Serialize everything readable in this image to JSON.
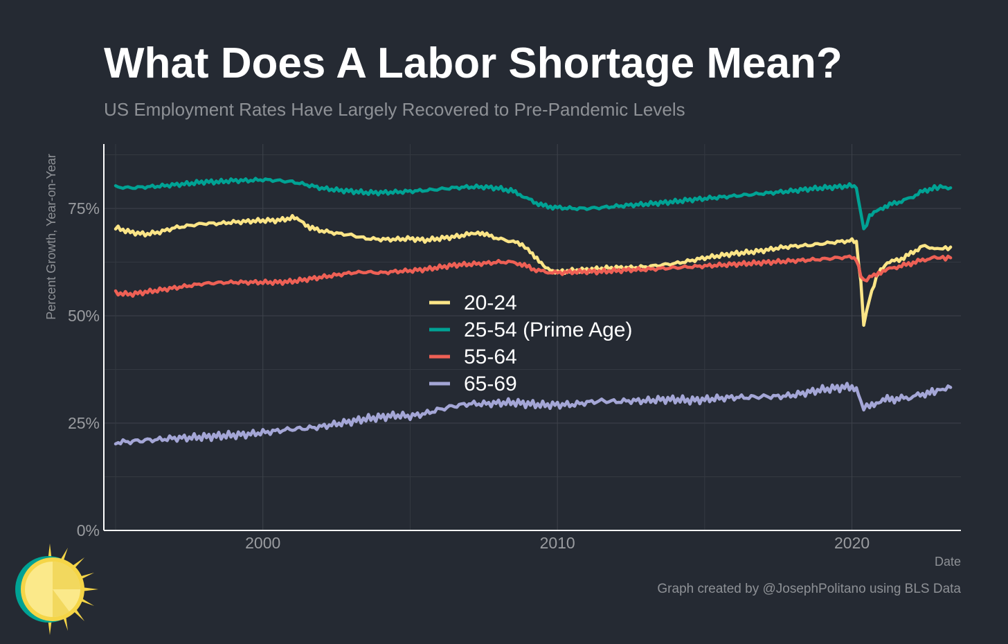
{
  "title": "What Does A Labor Shortage Mean?",
  "subtitle": "US Employment Rates Have Largely Recovered to Pre-Pandemic Levels",
  "credit": "Graph created by @JosephPolitano using BLS Data",
  "logo_icon": "sun-logo-icon",
  "chart_data": {
    "type": "line",
    "xlabel": "Date",
    "ylabel": "Percent Growth, Year-on-Year",
    "xlim": [
      1994.6,
      2023.7
    ],
    "ylim": [
      0,
      0.9
    ],
    "x_ticks": [
      2000,
      2010,
      2020
    ],
    "x_tick_labels": [
      "2000",
      "2010",
      "2020"
    ],
    "y_ticks": [
      0,
      0.25,
      0.5,
      0.75
    ],
    "y_tick_labels": [
      "0%",
      "25%",
      "50%",
      "75%"
    ],
    "grid": true,
    "legend_position": "center",
    "series": [
      {
        "name": "20-24",
        "color": "#fce587",
        "points": [
          [
            1995.0,
            0.705
          ],
          [
            1995.5,
            0.695
          ],
          [
            1996.0,
            0.69
          ],
          [
            1996.5,
            0.695
          ],
          [
            1997.0,
            0.705
          ],
          [
            1997.5,
            0.71
          ],
          [
            1998.0,
            0.715
          ],
          [
            1998.5,
            0.715
          ],
          [
            1999.0,
            0.718
          ],
          [
            1999.5,
            0.72
          ],
          [
            2000.0,
            0.722
          ],
          [
            2000.5,
            0.722
          ],
          [
            2001.0,
            0.728
          ],
          [
            2001.3,
            0.722
          ],
          [
            2001.6,
            0.705
          ],
          [
            2002.0,
            0.698
          ],
          [
            2002.5,
            0.692
          ],
          [
            2003.0,
            0.688
          ],
          [
            2003.5,
            0.68
          ],
          [
            2004.0,
            0.678
          ],
          [
            2004.5,
            0.678
          ],
          [
            2005.0,
            0.68
          ],
          [
            2005.5,
            0.676
          ],
          [
            2006.0,
            0.68
          ],
          [
            2006.5,
            0.684
          ],
          [
            2007.0,
            0.69
          ],
          [
            2007.3,
            0.695
          ],
          [
            2007.6,
            0.688
          ],
          [
            2008.0,
            0.68
          ],
          [
            2008.5,
            0.672
          ],
          [
            2008.8,
            0.665
          ],
          [
            2009.0,
            0.655
          ],
          [
            2009.3,
            0.635
          ],
          [
            2009.6,
            0.61
          ],
          [
            2010.0,
            0.602
          ],
          [
            2010.5,
            0.605
          ],
          [
            2011.0,
            0.607
          ],
          [
            2011.5,
            0.61
          ],
          [
            2012.0,
            0.612
          ],
          [
            2012.5,
            0.612
          ],
          [
            2013.0,
            0.614
          ],
          [
            2013.5,
            0.618
          ],
          [
            2014.0,
            0.622
          ],
          [
            2014.5,
            0.628
          ],
          [
            2015.0,
            0.635
          ],
          [
            2015.5,
            0.64
          ],
          [
            2016.0,
            0.645
          ],
          [
            2016.5,
            0.648
          ],
          [
            2017.0,
            0.652
          ],
          [
            2017.5,
            0.658
          ],
          [
            2018.0,
            0.662
          ],
          [
            2018.5,
            0.664
          ],
          [
            2019.0,
            0.668
          ],
          [
            2019.5,
            0.672
          ],
          [
            2020.0,
            0.675
          ],
          [
            2020.15,
            0.67
          ],
          [
            2020.3,
            0.58
          ],
          [
            2020.4,
            0.48
          ],
          [
            2020.6,
            0.54
          ],
          [
            2020.9,
            0.6
          ],
          [
            2021.2,
            0.625
          ],
          [
            2021.6,
            0.63
          ],
          [
            2022.0,
            0.645
          ],
          [
            2022.4,
            0.662
          ],
          [
            2022.8,
            0.658
          ],
          [
            2023.0,
            0.655
          ],
          [
            2023.35,
            0.66
          ]
        ]
      },
      {
        "name": "25-54 (Prime Age)",
        "color": "#00a294",
        "points": [
          [
            1995.0,
            0.8
          ],
          [
            1995.5,
            0.798
          ],
          [
            1996.0,
            0.8
          ],
          [
            1996.5,
            0.802
          ],
          [
            1997.0,
            0.805
          ],
          [
            1997.5,
            0.808
          ],
          [
            1998.0,
            0.812
          ],
          [
            1998.5,
            0.812
          ],
          [
            1999.0,
            0.815
          ],
          [
            1999.5,
            0.815
          ],
          [
            2000.0,
            0.817
          ],
          [
            2000.5,
            0.815
          ],
          [
            2001.0,
            0.812
          ],
          [
            2001.5,
            0.805
          ],
          [
            2002.0,
            0.797
          ],
          [
            2002.5,
            0.793
          ],
          [
            2003.0,
            0.79
          ],
          [
            2003.5,
            0.787
          ],
          [
            2004.0,
            0.787
          ],
          [
            2004.5,
            0.788
          ],
          [
            2005.0,
            0.79
          ],
          [
            2005.5,
            0.792
          ],
          [
            2006.0,
            0.795
          ],
          [
            2006.5,
            0.798
          ],
          [
            2007.0,
            0.8
          ],
          [
            2007.5,
            0.8
          ],
          [
            2008.0,
            0.797
          ],
          [
            2008.5,
            0.79
          ],
          [
            2008.8,
            0.78
          ],
          [
            2009.2,
            0.765
          ],
          [
            2009.6,
            0.755
          ],
          [
            2010.0,
            0.752
          ],
          [
            2010.5,
            0.75
          ],
          [
            2011.0,
            0.75
          ],
          [
            2011.5,
            0.752
          ],
          [
            2012.0,
            0.755
          ],
          [
            2012.5,
            0.758
          ],
          [
            2013.0,
            0.76
          ],
          [
            2013.5,
            0.763
          ],
          [
            2014.0,
            0.766
          ],
          [
            2014.5,
            0.77
          ],
          [
            2015.0,
            0.773
          ],
          [
            2015.5,
            0.776
          ],
          [
            2016.0,
            0.779
          ],
          [
            2016.5,
            0.782
          ],
          [
            2017.0,
            0.785
          ],
          [
            2017.5,
            0.788
          ],
          [
            2018.0,
            0.791
          ],
          [
            2018.5,
            0.795
          ],
          [
            2019.0,
            0.798
          ],
          [
            2019.5,
            0.8
          ],
          [
            2020.0,
            0.803
          ],
          [
            2020.15,
            0.8
          ],
          [
            2020.3,
            0.74
          ],
          [
            2020.4,
            0.7
          ],
          [
            2020.6,
            0.73
          ],
          [
            2020.9,
            0.748
          ],
          [
            2021.2,
            0.757
          ],
          [
            2021.6,
            0.765
          ],
          [
            2022.0,
            0.775
          ],
          [
            2022.4,
            0.79
          ],
          [
            2022.8,
            0.798
          ],
          [
            2023.0,
            0.8
          ],
          [
            2023.35,
            0.798
          ]
        ]
      },
      {
        "name": "55-64",
        "color": "#ee6055",
        "points": [
          [
            1995.0,
            0.553
          ],
          [
            1995.5,
            0.55
          ],
          [
            1996.0,
            0.555
          ],
          [
            1996.5,
            0.56
          ],
          [
            1997.0,
            0.565
          ],
          [
            1997.5,
            0.57
          ],
          [
            1998.0,
            0.575
          ],
          [
            1998.5,
            0.577
          ],
          [
            1999.0,
            0.578
          ],
          [
            1999.5,
            0.578
          ],
          [
            2000.0,
            0.578
          ],
          [
            2000.5,
            0.578
          ],
          [
            2001.0,
            0.58
          ],
          [
            2001.5,
            0.585
          ],
          [
            2002.0,
            0.59
          ],
          [
            2002.5,
            0.595
          ],
          [
            2003.0,
            0.6
          ],
          [
            2003.5,
            0.602
          ],
          [
            2004.0,
            0.6
          ],
          [
            2004.5,
            0.603
          ],
          [
            2005.0,
            0.605
          ],
          [
            2005.5,
            0.608
          ],
          [
            2006.0,
            0.613
          ],
          [
            2006.5,
            0.618
          ],
          [
            2007.0,
            0.62
          ],
          [
            2007.5,
            0.622
          ],
          [
            2008.0,
            0.625
          ],
          [
            2008.5,
            0.625
          ],
          [
            2008.8,
            0.62
          ],
          [
            2009.2,
            0.608
          ],
          [
            2009.6,
            0.602
          ],
          [
            2010.0,
            0.6
          ],
          [
            2010.5,
            0.602
          ],
          [
            2011.0,
            0.603
          ],
          [
            2011.5,
            0.603
          ],
          [
            2012.0,
            0.605
          ],
          [
            2012.5,
            0.607
          ],
          [
            2013.0,
            0.608
          ],
          [
            2013.5,
            0.61
          ],
          [
            2014.0,
            0.612
          ],
          [
            2014.5,
            0.614
          ],
          [
            2015.0,
            0.616
          ],
          [
            2015.5,
            0.618
          ],
          [
            2016.0,
            0.62
          ],
          [
            2016.5,
            0.622
          ],
          [
            2017.0,
            0.624
          ],
          [
            2017.5,
            0.626
          ],
          [
            2018.0,
            0.628
          ],
          [
            2018.5,
            0.63
          ],
          [
            2019.0,
            0.632
          ],
          [
            2019.5,
            0.635
          ],
          [
            2020.0,
            0.637
          ],
          [
            2020.15,
            0.633
          ],
          [
            2020.3,
            0.595
          ],
          [
            2020.4,
            0.58
          ],
          [
            2020.6,
            0.59
          ],
          [
            2020.9,
            0.6
          ],
          [
            2021.2,
            0.608
          ],
          [
            2021.6,
            0.615
          ],
          [
            2022.0,
            0.622
          ],
          [
            2022.4,
            0.63
          ],
          [
            2022.8,
            0.635
          ],
          [
            2023.0,
            0.635
          ],
          [
            2023.35,
            0.635
          ]
        ]
      },
      {
        "name": "65-69",
        "color": "#a4a6d6",
        "points": [
          [
            1995.0,
            0.205
          ],
          [
            1995.5,
            0.207
          ],
          [
            1996.0,
            0.21
          ],
          [
            1996.5,
            0.212
          ],
          [
            1997.0,
            0.215
          ],
          [
            1997.5,
            0.216
          ],
          [
            1998.0,
            0.218
          ],
          [
            1998.5,
            0.22
          ],
          [
            1999.0,
            0.222
          ],
          [
            1999.5,
            0.224
          ],
          [
            2000.0,
            0.228
          ],
          [
            2000.5,
            0.232
          ],
          [
            2001.0,
            0.236
          ],
          [
            2001.5,
            0.238
          ],
          [
            2002.0,
            0.242
          ],
          [
            2002.5,
            0.248
          ],
          [
            2003.0,
            0.254
          ],
          [
            2003.5,
            0.26
          ],
          [
            2004.0,
            0.264
          ],
          [
            2004.5,
            0.268
          ],
          [
            2005.0,
            0.266
          ],
          [
            2005.5,
            0.272
          ],
          [
            2006.0,
            0.282
          ],
          [
            2006.5,
            0.29
          ],
          [
            2007.0,
            0.295
          ],
          [
            2007.5,
            0.295
          ],
          [
            2008.0,
            0.297
          ],
          [
            2008.5,
            0.298
          ],
          [
            2009.0,
            0.295
          ],
          [
            2009.5,
            0.292
          ],
          [
            2010.0,
            0.293
          ],
          [
            2010.5,
            0.293
          ],
          [
            2011.0,
            0.298
          ],
          [
            2011.5,
            0.302
          ],
          [
            2012.0,
            0.3
          ],
          [
            2012.5,
            0.302
          ],
          [
            2013.0,
            0.302
          ],
          [
            2013.5,
            0.305
          ],
          [
            2014.0,
            0.305
          ],
          [
            2014.5,
            0.303
          ],
          [
            2015.0,
            0.305
          ],
          [
            2015.5,
            0.308
          ],
          [
            2016.0,
            0.31
          ],
          [
            2016.5,
            0.31
          ],
          [
            2017.0,
            0.312
          ],
          [
            2017.5,
            0.312
          ],
          [
            2018.0,
            0.315
          ],
          [
            2018.5,
            0.322
          ],
          [
            2019.0,
            0.328
          ],
          [
            2019.5,
            0.332
          ],
          [
            2020.0,
            0.335
          ],
          [
            2020.15,
            0.33
          ],
          [
            2020.3,
            0.3
          ],
          [
            2020.4,
            0.285
          ],
          [
            2020.6,
            0.292
          ],
          [
            2020.9,
            0.3
          ],
          [
            2021.2,
            0.305
          ],
          [
            2021.6,
            0.307
          ],
          [
            2022.0,
            0.31
          ],
          [
            2022.4,
            0.318
          ],
          [
            2022.8,
            0.322
          ],
          [
            2023.0,
            0.328
          ],
          [
            2023.35,
            0.333
          ]
        ]
      }
    ]
  }
}
